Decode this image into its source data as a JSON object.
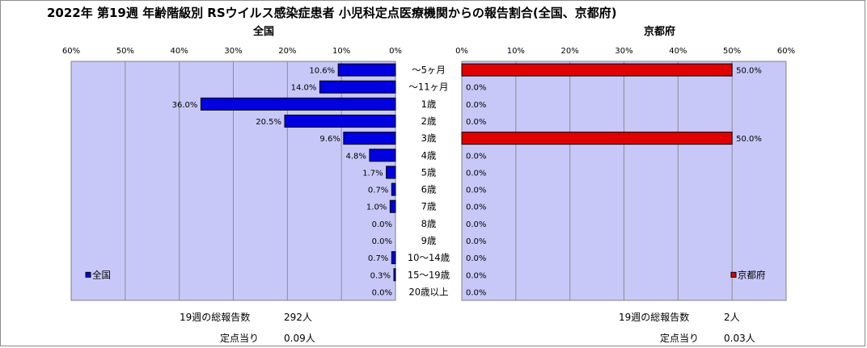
{
  "title": "2022年 第19週 年齢階級別 RSウイルス感染症患者 小児科定点医療機関からの報告割合(全国、京都府)",
  "chart_data": {
    "type": "bar",
    "categories": [
      "～5ヶ月",
      "～11ヶ月",
      "1歳",
      "2歳",
      "3歳",
      "4歳",
      "5歳",
      "6歳",
      "7歳",
      "8歳",
      "9歳",
      "10～14歳",
      "15～19歳",
      "20歳以上"
    ],
    "tick_labels": [
      "0%",
      "10%",
      "20%",
      "30%",
      "40%",
      "50%",
      "60%"
    ],
    "xlim": [
      0,
      60
    ],
    "panels": [
      {
        "id": "national",
        "subtitle": "全国",
        "legend": "全国",
        "color": "#0000e0",
        "values": [
          10.6,
          14.0,
          36.0,
          20.5,
          9.6,
          4.8,
          1.7,
          0.7,
          1.0,
          0.0,
          0.0,
          0.7,
          0.3,
          0.0
        ],
        "value_labels": [
          "10.6%",
          "14.0%",
          "36.0%",
          "20.5%",
          "9.6%",
          "4.8%",
          "1.7%",
          "0.7%",
          "1.0%",
          "0.0%",
          "0.0%",
          "0.7%",
          "0.3%",
          "0.0%"
        ],
        "stats": {
          "total_label": "19週の総報告数",
          "total_value": "292人",
          "per_label": "定点当り",
          "per_value": "0.09人"
        }
      },
      {
        "id": "kyoto",
        "subtitle": "京都府",
        "legend": "京都府",
        "color": "#e00000",
        "values": [
          50.0,
          0.0,
          0.0,
          0.0,
          50.0,
          0.0,
          0.0,
          0.0,
          0.0,
          0.0,
          0.0,
          0.0,
          0.0,
          0.0
        ],
        "value_labels": [
          "50.0%",
          "0.0%",
          "0.0%",
          "0.0%",
          "50.0%",
          "0.0%",
          "0.0%",
          "0.0%",
          "0.0%",
          "0.0%",
          "0.0%",
          "0.0%",
          "0.0%",
          "0.0%"
        ],
        "stats": {
          "total_label": "19週の総報告数",
          "total_value": "2人",
          "per_label": "定点当り",
          "per_value": "0.03人"
        }
      }
    ]
  }
}
